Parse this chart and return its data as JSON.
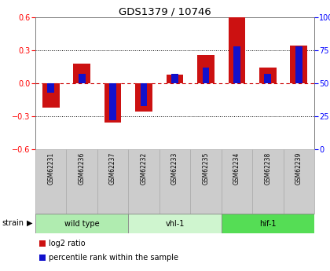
{
  "title": "GDS1379 / 10746",
  "samples": [
    "GSM62231",
    "GSM62236",
    "GSM62237",
    "GSM62232",
    "GSM62233",
    "GSM62235",
    "GSM62234",
    "GSM62238",
    "GSM62239"
  ],
  "log2_ratio": [
    -0.22,
    0.18,
    -0.36,
    -0.26,
    0.08,
    0.26,
    0.6,
    0.14,
    0.34
  ],
  "percentile": [
    43,
    57,
    22,
    33,
    57,
    62,
    78,
    57,
    78
  ],
  "groups": [
    {
      "label": "wild type",
      "start": 0,
      "end": 3,
      "color": "#b0ecb0"
    },
    {
      "label": "vhl-1",
      "start": 3,
      "end": 6,
      "color": "#cff5cf"
    },
    {
      "label": "hif-1",
      "start": 6,
      "end": 9,
      "color": "#55dd55"
    }
  ],
  "ylim": [
    -0.6,
    0.6
  ],
  "yticks_left": [
    -0.6,
    -0.3,
    0.0,
    0.3,
    0.6
  ],
  "yticks_right": [
    0,
    25,
    50,
    75,
    100
  ],
  "bar_color": "#cc1111",
  "blue_color": "#1111cc",
  "zero_line_color": "#cc0000",
  "sample_box_color": "#cccccc",
  "sample_box_edge": "#aaaaaa",
  "legend_red": "log2 ratio",
  "legend_blue": "percentile rank within the sample"
}
